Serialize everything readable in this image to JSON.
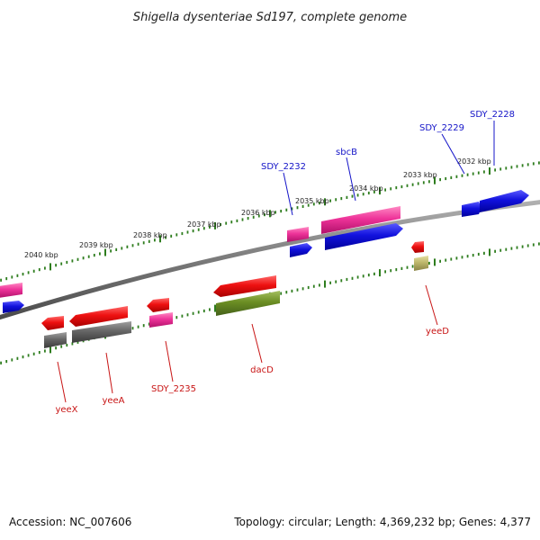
{
  "title": "Shigella dysenteriae Sd197, complete genome",
  "accession": "Accession: NC_007606",
  "topology": "Topology: circular; Length: 4,369,232 bp; Genes: 4,377",
  "ruler": {
    "labels": [
      {
        "text": "2040 kbp"
      },
      {
        "text": "2039 kbp"
      },
      {
        "text": "2038 kbp"
      },
      {
        "text": "2037 kbp"
      },
      {
        "text": "2036 kbp"
      },
      {
        "text": "2035 kbp"
      },
      {
        "text": "2034 kbp"
      },
      {
        "text": "2033 kbp"
      },
      {
        "text": "2032 kbp"
      }
    ]
  },
  "gene_labels": [
    {
      "text": "SDY_2228",
      "strand": "forward"
    },
    {
      "text": "SDY_2229",
      "strand": "forward"
    },
    {
      "text": "sbcB",
      "strand": "forward"
    },
    {
      "text": "SDY_2232",
      "strand": "forward"
    },
    {
      "text": "yeeD",
      "strand": "reverse"
    },
    {
      "text": "dacD",
      "strand": "reverse"
    },
    {
      "text": "SDY_2235",
      "strand": "reverse"
    },
    {
      "text": "yeeA",
      "strand": "reverse"
    },
    {
      "text": "yeeX",
      "strand": "reverse"
    }
  ],
  "colors": {
    "backbone": "#7a7a7a",
    "ruler_ticks": "#2e7d1e",
    "forward_label": "#1515c8",
    "reverse_label": "#c81515",
    "gene_red": "#ee1111",
    "gene_pink": "#ee3399",
    "gene_blue": "#1111dd",
    "gene_gray": "#666666",
    "gene_olive": "#6b8e23",
    "gene_khaki": "#bdb76b"
  }
}
